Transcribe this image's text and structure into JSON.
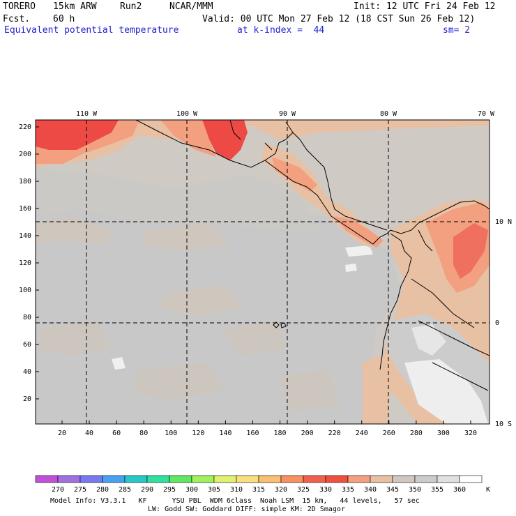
{
  "header": {
    "model": "TORERO",
    "resolution": "15km ARW",
    "run": "Run2",
    "institution": "NCAR/MMM",
    "init": "Init: 12 UTC Fri 24 Feb 12",
    "fcst_label": "Fcst.",
    "fcst_value": "60 h",
    "valid": "Valid: 00 UTC Mon 27 Feb 12 (18 CST Sun 26 Feb 12)",
    "field": "Equivalent potential temperature",
    "level": "at k-index =  44",
    "smoothing": "sm= 2"
  },
  "map": {
    "top_axis_labels": [
      "110 W",
      "100 W",
      "90 W",
      "80 W",
      "70 W"
    ],
    "right_axis_labels": [
      "10 N",
      "0",
      "10 S"
    ],
    "x_ticks": [
      "20",
      "40",
      "60",
      "80",
      "100",
      "120",
      "140",
      "160",
      "180",
      "200",
      "220",
      "240",
      "260",
      "280",
      "300",
      "320"
    ],
    "y_ticks": [
      "220",
      "200",
      "180",
      "160",
      "140",
      "120",
      "100",
      "80",
      "60",
      "40",
      "20"
    ],
    "colors": {
      "background": "#cfcac4",
      "ocean_gray": "#c8c8c8",
      "light_gray": "#d8d8d8",
      "warm_tan": "#e8c0a4",
      "salmon": "#f2a080",
      "orange_red": "#f07060",
      "red": "#ee4a45",
      "white_patch": "#f0f0f0"
    }
  },
  "colorbar": {
    "values": [
      "270",
      "275",
      "280",
      "285",
      "290",
      "295",
      "300",
      "305",
      "310",
      "315",
      "320",
      "325",
      "330",
      "335",
      "340",
      "345",
      "350",
      "355",
      "360"
    ],
    "unit": "K",
    "colors": [
      "#c050d8",
      "#a070e0",
      "#7878f0",
      "#4aa0f0",
      "#28c8c8",
      "#30e0a0",
      "#60e860",
      "#a0f060",
      "#e0f070",
      "#f8e080",
      "#f8c070",
      "#f89060",
      "#f06050",
      "#f05040",
      "#f4a080",
      "#e8c0a4",
      "#d0c8c0",
      "#cccccc",
      "#e0e0e0",
      "#ffffff"
    ]
  },
  "footer": {
    "line1": "Model Info: V3.3.1   KF      YSU PBL  WDM 6class  Noah LSM  15 km,   44 levels,   57 sec",
    "line2": "LW: Godd SW: Goddard DIFF: simple KM: 2D Smagor"
  }
}
